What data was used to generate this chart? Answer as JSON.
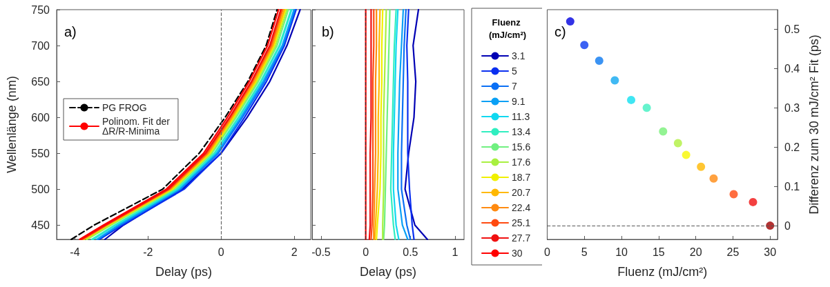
{
  "chart_data": [
    {
      "type": "line",
      "xlabel": "Delay (ps)",
      "ylabel": "Wellenlänge (nm)",
      "annotations": [
        "a)"
      ],
      "xlim": [
        -4.5,
        2.45
      ],
      "xticks": [
        -4,
        -2,
        0,
        2
      ],
      "ylim": [
        430,
        750
      ],
      "yticks": [
        450,
        500,
        550,
        600,
        650,
        700,
        750
      ],
      "grid": false,
      "legend": "left",
      "marker": "none",
      "ref_lines": [
        {
          "axis": "x",
          "value": 0,
          "color": "#666666",
          "line_style": "dashed"
        }
      ],
      "series": [
        {
          "name": "PG FROG",
          "color": "#000000",
          "line_style": "dashed",
          "x": [
            -4.1,
            -3.47,
            -1.6,
            -0.6,
            0.11,
            0.73,
            1.23,
            1.53
          ],
          "values": [
            430,
            450,
            500,
            550,
            600,
            650,
            700,
            750
          ]
        },
        {
          "color": "#0000b4",
          "x": [
            -3.18,
            -2.67,
            -1.06,
            0.0,
            0.71,
            1.33,
            1.8,
            2.16
          ],
          "values": [
            430,
            450,
            500,
            550,
            600,
            650,
            700,
            750
          ]
        },
        {
          "color": "#0a2ff0",
          "x": [
            -3.33,
            -2.7,
            -1.01,
            -0.01,
            0.64,
            1.24,
            1.73,
            2.05
          ],
          "values": [
            430,
            450,
            500,
            550,
            600,
            650,
            700,
            750
          ]
        },
        {
          "color": "#0a6ff5",
          "x": [
            -3.37,
            -2.76,
            -1.1,
            -0.08,
            0.58,
            1.19,
            1.7,
            2.02
          ],
          "values": [
            430,
            450,
            500,
            550,
            600,
            650,
            700,
            750
          ]
        },
        {
          "color": "#0aa0f5",
          "x": [
            -3.4,
            -2.81,
            -1.14,
            -0.12,
            0.54,
            1.15,
            1.67,
            1.99
          ],
          "values": [
            430,
            450,
            500,
            550,
            600,
            650,
            700,
            750
          ]
        },
        {
          "color": "#10d8f0",
          "x": [
            -3.5,
            -2.88,
            -1.19,
            -0.17,
            0.49,
            1.1,
            1.61,
            1.93
          ],
          "values": [
            430,
            450,
            500,
            550,
            600,
            650,
            700,
            750
          ]
        },
        {
          "color": "#30eec0",
          "x": [
            -3.54,
            -2.91,
            -1.22,
            -0.19,
            0.47,
            1.08,
            1.59,
            1.91
          ],
          "values": [
            430,
            450,
            500,
            550,
            600,
            650,
            700,
            750
          ]
        },
        {
          "color": "#70f080",
          "x": [
            -3.67,
            -3.01,
            -1.28,
            -0.25,
            0.41,
            1.02,
            1.53,
            1.84
          ],
          "values": [
            430,
            450,
            500,
            550,
            600,
            650,
            700,
            750
          ]
        },
        {
          "color": "#a8f040",
          "x": [
            -3.68,
            -3.03,
            -1.3,
            -0.28,
            0.37,
            0.98,
            1.49,
            1.8
          ],
          "values": [
            430,
            450,
            500,
            550,
            600,
            650,
            700,
            750
          ]
        },
        {
          "color": "#f0f000",
          "x": [
            -3.75,
            -3.09,
            -1.34,
            -0.31,
            0.34,
            0.95,
            1.45,
            1.76
          ],
          "values": [
            430,
            450,
            500,
            550,
            600,
            650,
            700,
            750
          ]
        },
        {
          "color": "#ffb800",
          "x": [
            -3.77,
            -3.11,
            -1.37,
            -0.34,
            0.31,
            0.92,
            1.42,
            1.73
          ],
          "values": [
            430,
            450,
            500,
            550,
            600,
            650,
            700,
            750
          ]
        },
        {
          "color": "#ff8a10",
          "x": [
            -3.78,
            -3.13,
            -1.4,
            -0.37,
            0.28,
            0.88,
            1.39,
            1.69
          ],
          "values": [
            430,
            450,
            500,
            550,
            600,
            650,
            700,
            750
          ]
        },
        {
          "color": "#ff4a10",
          "x": [
            -3.81,
            -3.15,
            -1.42,
            -0.4,
            0.25,
            0.85,
            1.36,
            1.66
          ],
          "values": [
            430,
            450,
            500,
            550,
            600,
            650,
            700,
            750
          ]
        },
        {
          "color": "#f01010",
          "x": [
            -3.83,
            -3.17,
            -1.45,
            -0.43,
            0.23,
            0.83,
            1.33,
            1.63
          ],
          "values": [
            430,
            450,
            500,
            550,
            600,
            650,
            700,
            750
          ]
        },
        {
          "name": "Polinom. Fit der ΔR/R-Minima",
          "color": "#ff0000",
          "x": [
            -3.87,
            -3.22,
            -1.5,
            -0.48,
            0.17,
            0.77,
            1.27,
            1.57
          ],
          "values": [
            430,
            450,
            500,
            550,
            600,
            650,
            700,
            750
          ]
        }
      ]
    },
    {
      "type": "line",
      "xlabel": "Delay (ps)",
      "legend_title": "Fluenz (mJ/cm²)",
      "annotations": [
        "b)"
      ],
      "xlim": [
        -0.6,
        1.1
      ],
      "xticks": [
        -0.5,
        0,
        0.5,
        1
      ],
      "ylim": [
        430,
        750
      ],
      "yticks": [
        450,
        500,
        550,
        600,
        650,
        700,
        750
      ],
      "tick_labels": "x",
      "grid": false,
      "legend": "right",
      "marker": "none",
      "ref_lines": [
        {
          "axis": "x",
          "value": 0,
          "color": "#333333",
          "line_style": "dashed"
        }
      ],
      "series": [
        {
          "name": "3.1",
          "color": "#0000b4",
          "x": [
            0.69,
            0.55,
            0.44,
            0.48,
            0.54,
            0.56,
            0.53,
            0.59
          ],
          "values": [
            430,
            450,
            500,
            550,
            600,
            650,
            700,
            750
          ]
        },
        {
          "name": "5",
          "color": "#0a2ff0",
          "x": [
            0.54,
            0.52,
            0.49,
            0.47,
            0.47,
            0.47,
            0.46,
            0.48
          ],
          "values": [
            430,
            450,
            500,
            550,
            600,
            650,
            700,
            750
          ]
        },
        {
          "name": "7",
          "color": "#0a6ff5",
          "x": [
            0.5,
            0.46,
            0.4,
            0.4,
            0.41,
            0.42,
            0.43,
            0.45
          ],
          "values": [
            430,
            450,
            500,
            550,
            600,
            650,
            700,
            750
          ]
        },
        {
          "name": "9.1",
          "color": "#0aa0f5",
          "x": [
            0.47,
            0.41,
            0.36,
            0.36,
            0.37,
            0.38,
            0.4,
            0.42
          ],
          "values": [
            430,
            450,
            500,
            550,
            600,
            650,
            700,
            750
          ]
        },
        {
          "name": "11.3",
          "color": "#10d8f0",
          "x": [
            0.37,
            0.34,
            0.31,
            0.31,
            0.32,
            0.33,
            0.34,
            0.36
          ],
          "values": [
            430,
            450,
            500,
            550,
            600,
            650,
            700,
            750
          ]
        },
        {
          "name": "13.4",
          "color": "#30eec0",
          "x": [
            0.33,
            0.31,
            0.28,
            0.29,
            0.3,
            0.31,
            0.32,
            0.34
          ],
          "values": [
            430,
            450,
            500,
            550,
            600,
            650,
            700,
            750
          ]
        },
        {
          "name": "15.6",
          "color": "#70f080",
          "x": [
            0.2,
            0.21,
            0.22,
            0.23,
            0.24,
            0.25,
            0.26,
            0.27
          ],
          "values": [
            430,
            450,
            500,
            550,
            600,
            650,
            700,
            750
          ]
        },
        {
          "name": "17.6",
          "color": "#a8f040",
          "x": [
            0.19,
            0.19,
            0.2,
            0.2,
            0.2,
            0.21,
            0.22,
            0.23
          ],
          "values": [
            430,
            450,
            500,
            550,
            600,
            650,
            700,
            750
          ]
        },
        {
          "name": "18.7",
          "color": "#f0f000",
          "x": [
            0.12,
            0.13,
            0.16,
            0.17,
            0.17,
            0.18,
            0.18,
            0.19
          ],
          "values": [
            430,
            450,
            500,
            550,
            600,
            650,
            700,
            750
          ]
        },
        {
          "name": "20.7",
          "color": "#ffb800",
          "x": [
            0.1,
            0.11,
            0.13,
            0.14,
            0.14,
            0.15,
            0.15,
            0.16
          ],
          "values": [
            430,
            450,
            500,
            550,
            600,
            650,
            700,
            750
          ]
        },
        {
          "name": "22.4",
          "color": "#ff8a10",
          "x": [
            0.09,
            0.09,
            0.1,
            0.11,
            0.11,
            0.11,
            0.12,
            0.12
          ],
          "values": [
            430,
            450,
            500,
            550,
            600,
            650,
            700,
            750
          ]
        },
        {
          "name": "25.1",
          "color": "#ff4a10",
          "x": [
            0.06,
            0.07,
            0.08,
            0.08,
            0.08,
            0.08,
            0.09,
            0.09
          ],
          "values": [
            430,
            450,
            500,
            550,
            600,
            650,
            700,
            750
          ]
        },
        {
          "name": "27.7",
          "color": "#f01010",
          "x": [
            0.04,
            0.05,
            0.05,
            0.05,
            0.06,
            0.06,
            0.06,
            0.06
          ],
          "values": [
            430,
            450,
            500,
            550,
            600,
            650,
            700,
            750
          ]
        },
        {
          "name": "30",
          "color": "#ff0000",
          "x": [
            0,
            0,
            0,
            0,
            0,
            0,
            0,
            0
          ],
          "values": [
            430,
            450,
            500,
            550,
            600,
            650,
            700,
            750
          ]
        }
      ]
    },
    {
      "type": "scatter",
      "xlabel": "Fluenz (mJ/cm²)",
      "y2label": "Differenz zum 30 mJ/cm² Fit (ps)",
      "annotations": [
        "c)"
      ],
      "xlim": [
        0,
        31
      ],
      "xticks": [
        0,
        5,
        10,
        15,
        20,
        25,
        30
      ],
      "y2lim": [
        -0.035,
        0.55
      ],
      "y2ticks": [
        0,
        0.1,
        0.2,
        0.3,
        0.4,
        0.5
      ],
      "grid": false,
      "legend": false,
      "marker": "circle",
      "ref_lines": [
        {
          "axis": "y2",
          "value": 0,
          "color": "#555555",
          "line_style": "dashed"
        }
      ],
      "series": [
        {
          "axis": "y2",
          "x": [
            3.1,
            5,
            7,
            9.1,
            11.3,
            13.4,
            15.6,
            17.6,
            18.7,
            20.7,
            22.4,
            25.1,
            27.7,
            30
          ],
          "values": [
            0.52,
            0.46,
            0.42,
            0.37,
            0.32,
            0.3,
            0.24,
            0.21,
            0.18,
            0.15,
            0.12,
            0.08,
            0.06,
            0
          ],
          "colors": [
            "#0000e0",
            "#0a3af0",
            "#0a78f0",
            "#10a8f0",
            "#10e0f0",
            "#40f0c0",
            "#78f078",
            "#b0f040",
            "#f8f800",
            "#ffb800",
            "#ff8a10",
            "#ff4a10",
            "#f01010",
            "#a00000"
          ]
        }
      ]
    }
  ]
}
